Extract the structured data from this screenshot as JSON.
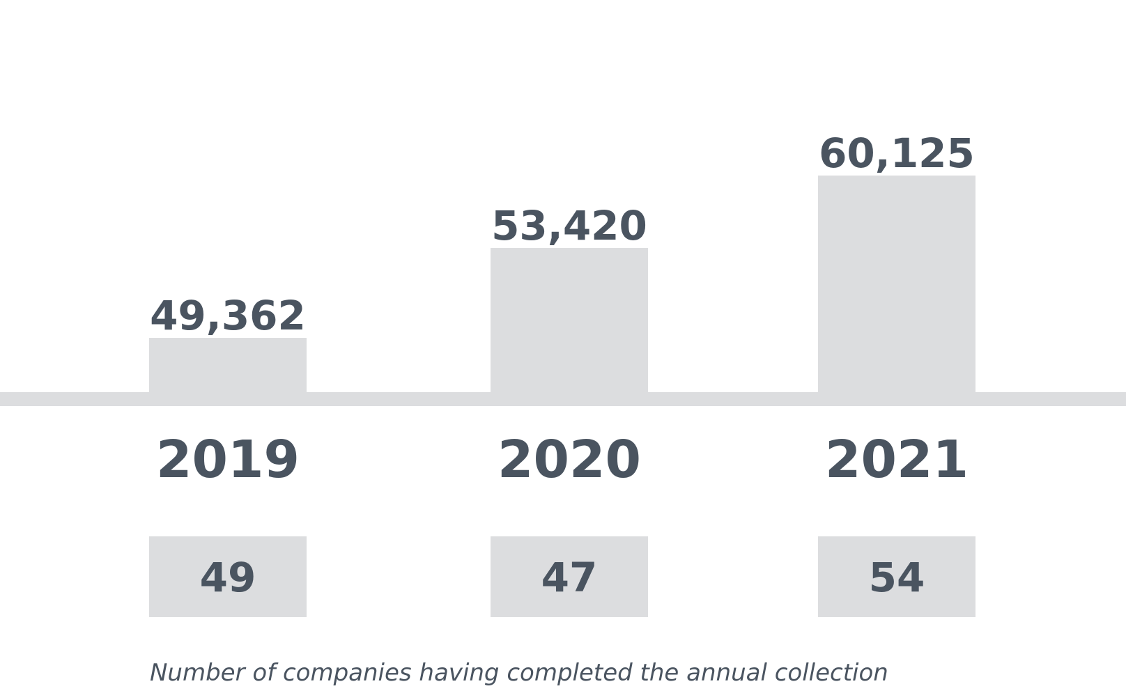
{
  "chart_data": {
    "type": "bar",
    "categories": [
      "2019",
      "2020",
      "2021"
    ],
    "series": [
      {
        "values": [
          49362,
          53420,
          60125
        ],
        "value_labels": [
          "49,362",
          "53,420",
          "60,125"
        ]
      }
    ],
    "secondary_counts": {
      "values": [
        49,
        47,
        54
      ],
      "labels": [
        "49",
        "47",
        "54"
      ]
    },
    "caption": "Number of companies having completed the annual collection",
    "grid": false,
    "legend": "none"
  },
  "colors": {
    "bar": "#dcdddf",
    "baseline": "#dcdddf",
    "count_box": "#dcdddf",
    "text": "#4a5460",
    "background": "#ffffff"
  }
}
